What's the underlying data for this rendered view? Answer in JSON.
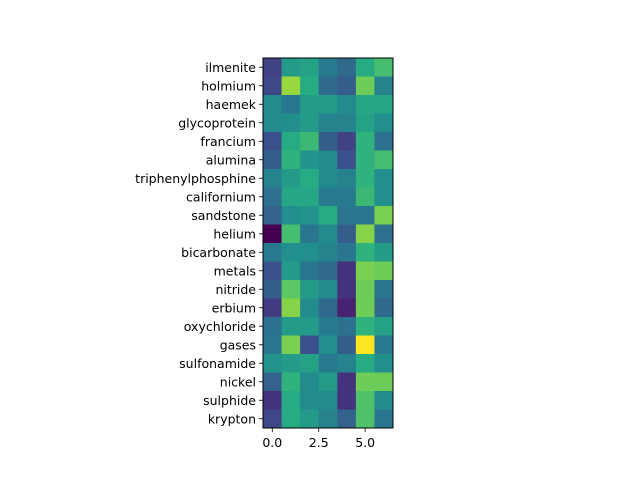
{
  "chart_data": {
    "type": "heatmap",
    "colormap": "viridis",
    "rows": [
      "ilmenite",
      "holmium",
      "haemek",
      "glycoprotein",
      "francium",
      "alumina",
      "triphenylphosphine",
      "californium",
      "sandstone",
      "helium",
      "bicarbonate",
      "metals",
      "nitride",
      "erbium",
      "oxychloride",
      "gases",
      "sulfonamide",
      "nickel",
      "sulphide",
      "krypton"
    ],
    "x_ticks": [
      {
        "value": 0,
        "label": "0.0"
      },
      {
        "value": 2.5,
        "label": "2.5"
      },
      {
        "value": 5,
        "label": "5.0"
      }
    ],
    "xlim": [
      -0.5,
      6.5
    ],
    "value_range": [
      0,
      1
    ],
    "values": [
      [
        0.2,
        0.55,
        0.58,
        0.42,
        0.35,
        0.62,
        0.7
      ],
      [
        0.22,
        0.85,
        0.62,
        0.35,
        0.3,
        0.78,
        0.45
      ],
      [
        0.48,
        0.4,
        0.55,
        0.55,
        0.48,
        0.6,
        0.6
      ],
      [
        0.48,
        0.5,
        0.55,
        0.45,
        0.45,
        0.58,
        0.5
      ],
      [
        0.25,
        0.62,
        0.68,
        0.3,
        0.2,
        0.65,
        0.38
      ],
      [
        0.3,
        0.65,
        0.52,
        0.48,
        0.25,
        0.65,
        0.7
      ],
      [
        0.45,
        0.55,
        0.62,
        0.48,
        0.45,
        0.65,
        0.5
      ],
      [
        0.38,
        0.6,
        0.6,
        0.42,
        0.42,
        0.68,
        0.5
      ],
      [
        0.32,
        0.5,
        0.52,
        0.62,
        0.4,
        0.4,
        0.8
      ],
      [
        0.0,
        0.7,
        0.4,
        0.48,
        0.3,
        0.82,
        0.38
      ],
      [
        0.42,
        0.5,
        0.5,
        0.45,
        0.4,
        0.65,
        0.55
      ],
      [
        0.25,
        0.55,
        0.4,
        0.35,
        0.15,
        0.8,
        0.78
      ],
      [
        0.3,
        0.75,
        0.55,
        0.48,
        0.15,
        0.78,
        0.4
      ],
      [
        0.18,
        0.82,
        0.48,
        0.35,
        0.1,
        0.78,
        0.35
      ],
      [
        0.38,
        0.55,
        0.55,
        0.42,
        0.38,
        0.65,
        0.58
      ],
      [
        0.4,
        0.8,
        0.25,
        0.5,
        0.3,
        1.0,
        0.42
      ],
      [
        0.52,
        0.55,
        0.58,
        0.42,
        0.45,
        0.62,
        0.5
      ],
      [
        0.32,
        0.65,
        0.48,
        0.55,
        0.15,
        0.78,
        0.78
      ],
      [
        0.15,
        0.62,
        0.48,
        0.48,
        0.15,
        0.72,
        0.48
      ],
      [
        0.22,
        0.62,
        0.55,
        0.45,
        0.32,
        0.72,
        0.4
      ]
    ]
  }
}
